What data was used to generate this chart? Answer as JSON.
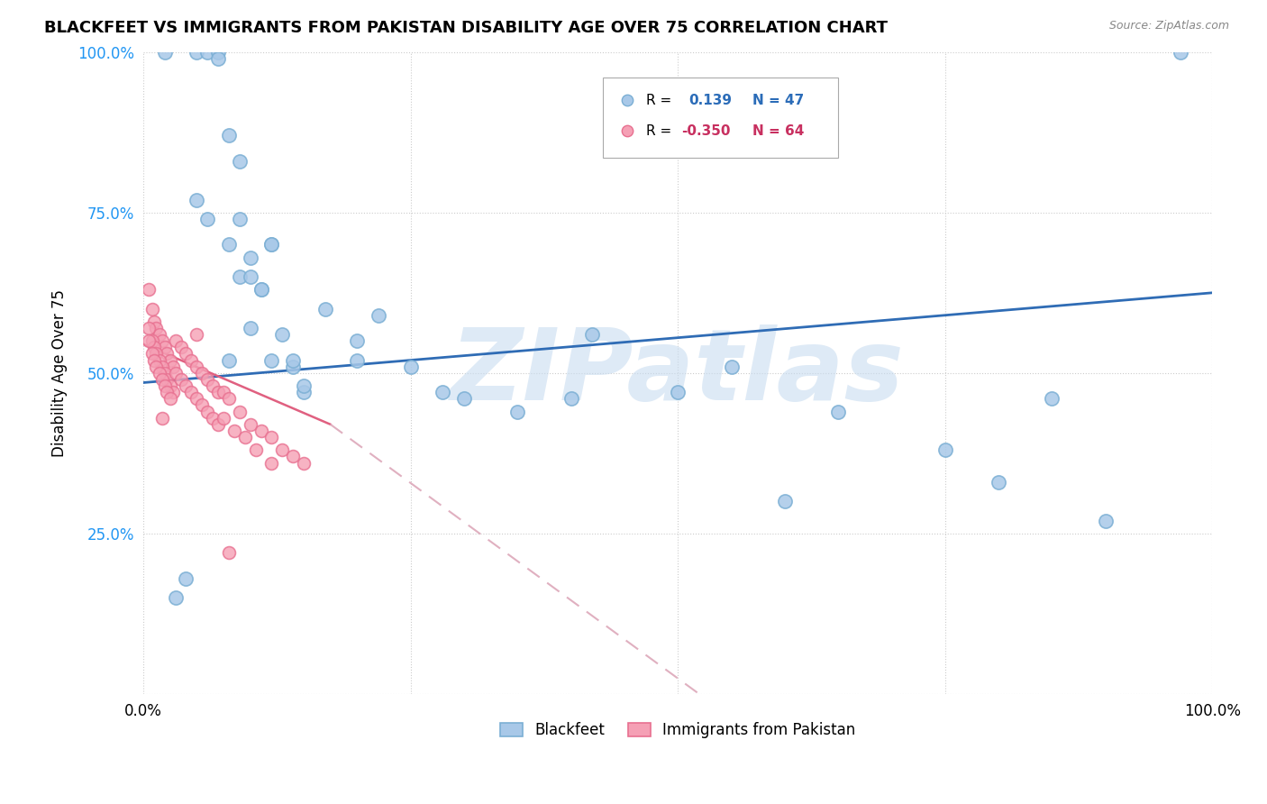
{
  "title": "BLACKFEET VS IMMIGRANTS FROM PAKISTAN DISABILITY AGE OVER 75 CORRELATION CHART",
  "source": "Source: ZipAtlas.com",
  "ylabel": "Disability Age Over 75",
  "watermark": "ZIPatlas",
  "blue_scatter_x": [
    0.02,
    0.05,
    0.06,
    0.07,
    0.07,
    0.08,
    0.08,
    0.09,
    0.09,
    0.1,
    0.1,
    0.11,
    0.12,
    0.12,
    0.13,
    0.14,
    0.15,
    0.17,
    0.2,
    0.22,
    0.25,
    0.28,
    0.3,
    0.35,
    0.4,
    0.42,
    0.5,
    0.55,
    0.6,
    0.65,
    0.75,
    0.8,
    0.85,
    0.9,
    0.97,
    0.05,
    0.06,
    0.08,
    0.1,
    0.12,
    0.15,
    0.2,
    0.09,
    0.11,
    0.14,
    0.04,
    0.03
  ],
  "blue_scatter_y": [
    1.0,
    1.0,
    1.0,
    1.0,
    0.99,
    0.87,
    0.7,
    0.83,
    0.65,
    0.68,
    0.57,
    0.63,
    0.7,
    0.52,
    0.56,
    0.51,
    0.47,
    0.6,
    0.55,
    0.59,
    0.51,
    0.47,
    0.46,
    0.44,
    0.46,
    0.56,
    0.47,
    0.51,
    0.3,
    0.44,
    0.38,
    0.33,
    0.46,
    0.27,
    1.0,
    0.77,
    0.74,
    0.52,
    0.65,
    0.7,
    0.48,
    0.52,
    0.74,
    0.63,
    0.52,
    0.18,
    0.15
  ],
  "pink_scatter_x": [
    0.005,
    0.008,
    0.01,
    0.012,
    0.015,
    0.018,
    0.02,
    0.022,
    0.025,
    0.028,
    0.005,
    0.008,
    0.01,
    0.012,
    0.015,
    0.018,
    0.02,
    0.022,
    0.025,
    0.028,
    0.005,
    0.008,
    0.01,
    0.012,
    0.015,
    0.018,
    0.02,
    0.022,
    0.025,
    0.03,
    0.035,
    0.04,
    0.045,
    0.05,
    0.055,
    0.06,
    0.065,
    0.07,
    0.03,
    0.035,
    0.04,
    0.045,
    0.05,
    0.055,
    0.06,
    0.065,
    0.07,
    0.075,
    0.08,
    0.09,
    0.1,
    0.11,
    0.12,
    0.13,
    0.14,
    0.15,
    0.075,
    0.085,
    0.095,
    0.105,
    0.12,
    0.08,
    0.05,
    0.018
  ],
  "pink_scatter_y": [
    0.63,
    0.6,
    0.58,
    0.57,
    0.56,
    0.55,
    0.54,
    0.53,
    0.52,
    0.51,
    0.57,
    0.55,
    0.54,
    0.53,
    0.52,
    0.51,
    0.5,
    0.49,
    0.48,
    0.47,
    0.55,
    0.53,
    0.52,
    0.51,
    0.5,
    0.49,
    0.48,
    0.47,
    0.46,
    0.55,
    0.54,
    0.53,
    0.52,
    0.51,
    0.5,
    0.49,
    0.48,
    0.47,
    0.5,
    0.49,
    0.48,
    0.47,
    0.46,
    0.45,
    0.44,
    0.43,
    0.42,
    0.47,
    0.46,
    0.44,
    0.42,
    0.41,
    0.4,
    0.38,
    0.37,
    0.36,
    0.43,
    0.41,
    0.4,
    0.38,
    0.36,
    0.22,
    0.56,
    0.43
  ],
  "blue_line_x": [
    0.0,
    1.0
  ],
  "blue_line_y": [
    0.485,
    0.625
  ],
  "pink_solid_line_x": [
    0.0,
    0.175
  ],
  "pink_solid_line_y": [
    0.545,
    0.42
  ],
  "pink_dash_line_x": [
    0.175,
    0.52
  ],
  "pink_dash_line_y": [
    0.42,
    0.0
  ],
  "blue_color": "#A8C8E8",
  "pink_color": "#F5A0B5",
  "blue_edge_color": "#7BAFD4",
  "pink_edge_color": "#E87090",
  "blue_line_color": "#2F6CB5",
  "pink_line_solid_color": "#E06080",
  "pink_line_dash_color": "#E0B0C0",
  "grid_color": "#CCCCCC",
  "background_color": "#FFFFFF",
  "watermark_color": "#C8DCF0",
  "ytick_vals": [
    0.0,
    0.25,
    0.5,
    0.75,
    1.0
  ],
  "ytick_labels": [
    "",
    "25.0%",
    "50.0%",
    "75.0%",
    "100.0%"
  ],
  "xtick_vals": [
    0.0,
    0.25,
    0.5,
    0.75,
    1.0
  ],
  "xtick_labels": [
    "0.0%",
    "",
    "",
    "",
    "100.0%"
  ]
}
